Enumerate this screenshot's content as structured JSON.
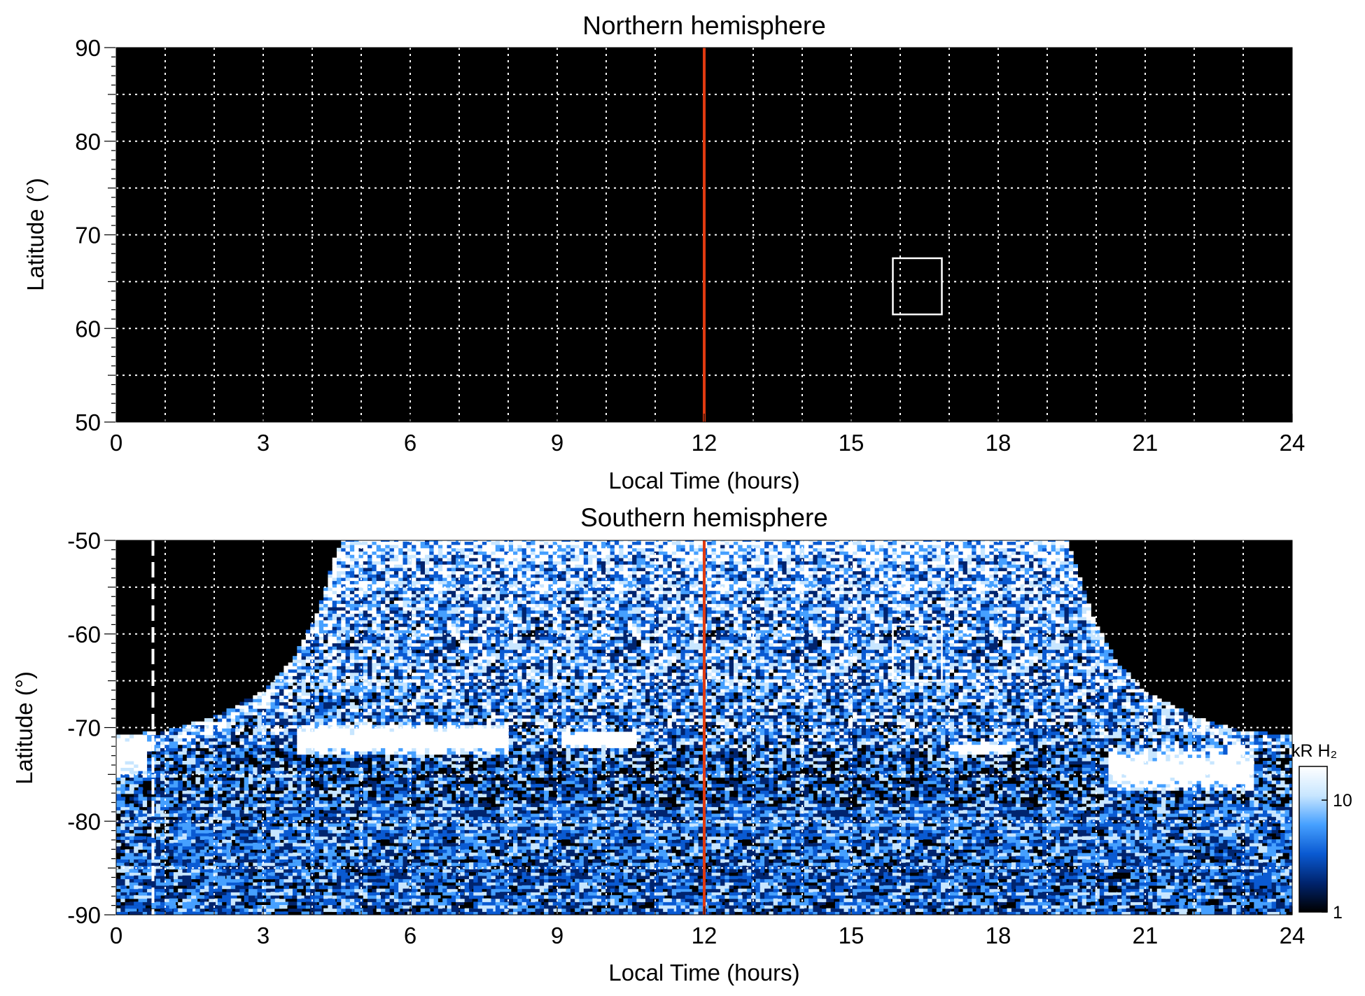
{
  "chart_data": [
    {
      "type": "heatmap",
      "title": "Northern hemisphere",
      "xlabel": "Local Time (hours)",
      "ylabel": "Latitude (°)",
      "xlim": [
        0,
        24
      ],
      "ylim": [
        50,
        90
      ],
      "x_major_ticks": [
        0,
        3,
        6,
        9,
        12,
        15,
        18,
        21,
        24
      ],
      "y_major_ticks": [
        50,
        60,
        70,
        80,
        90
      ],
      "x_grid_step": 1,
      "y_grid_step": 5,
      "grid": true,
      "background": "#000000",
      "data_coverage": "none",
      "noon_line": {
        "x": 12,
        "color": "#e03a10"
      },
      "box": {
        "x": [
          15.85,
          16.85
        ],
        "y": [
          61.5,
          67.5
        ]
      }
    },
    {
      "type": "heatmap",
      "title": "Southern hemisphere",
      "xlabel": "Local Time (hours)",
      "ylabel": "Latitude (°)",
      "xlim": [
        0,
        24
      ],
      "ylim": [
        -90,
        -50
      ],
      "x_major_ticks": [
        0,
        3,
        6,
        9,
        12,
        15,
        18,
        21,
        24
      ],
      "y_major_ticks": [
        -90,
        -80,
        -70,
        -60,
        -50
      ],
      "x_grid_step": 1,
      "y_grid_step": 5,
      "grid": true,
      "background": "#000000",
      "coverage_edge": [
        [
          0,
          -70.9
        ],
        [
          1,
          -70.6
        ],
        [
          2,
          -69.0
        ],
        [
          3,
          -66.3
        ],
        [
          3.6,
          -63.0
        ],
        [
          4.1,
          -58.0
        ],
        [
          4.4,
          -53.0
        ],
        [
          4.6,
          -50.0
        ],
        [
          19.4,
          -50.0
        ],
        [
          19.6,
          -53.0
        ],
        [
          19.9,
          -58.0
        ],
        [
          20.4,
          -63.0
        ],
        [
          21,
          -66.3
        ],
        [
          22,
          -69.0
        ],
        [
          23,
          -70.6
        ],
        [
          24,
          -70.9
        ]
      ],
      "bright_features": [
        {
          "x": [
            3.6,
            8.0
          ],
          "y_center": -71.3,
          "half_height": 1.6,
          "intensity": 18
        },
        {
          "x": [
            9.0,
            10.6
          ],
          "y_center": -71.3,
          "half_height": 0.9,
          "intensity": 14
        },
        {
          "x": [
            17.0,
            18.2
          ],
          "y_center": -72.2,
          "half_height": 0.6,
          "intensity": 10
        },
        {
          "x": [
            20.2,
            23.2
          ],
          "y_center": -74.5,
          "half_height": 2.2,
          "intensity": 16
        },
        {
          "x": [
            0.0,
            0.6
          ],
          "y_center": -73.0,
          "half_height": 2.2,
          "intensity": 14
        }
      ],
      "noon_line": {
        "x": 12,
        "color": "#e03a10"
      },
      "box": {
        "x": [
          15.85,
          16.85
        ],
        "y": [
          -65.0,
          -59.0
        ]
      },
      "dashed_marker": {
        "x": 0.75,
        "color": "#ffffff"
      },
      "colorbar": {
        "label": "kR H₂",
        "scale": "log",
        "range": [
          1,
          20
        ],
        "ticks": [
          1,
          10
        ],
        "colors": [
          "#000000",
          "#00246e",
          "#0a5ad2",
          "#46a0ff",
          "#c8e6ff",
          "#ffffff"
        ]
      }
    }
  ]
}
